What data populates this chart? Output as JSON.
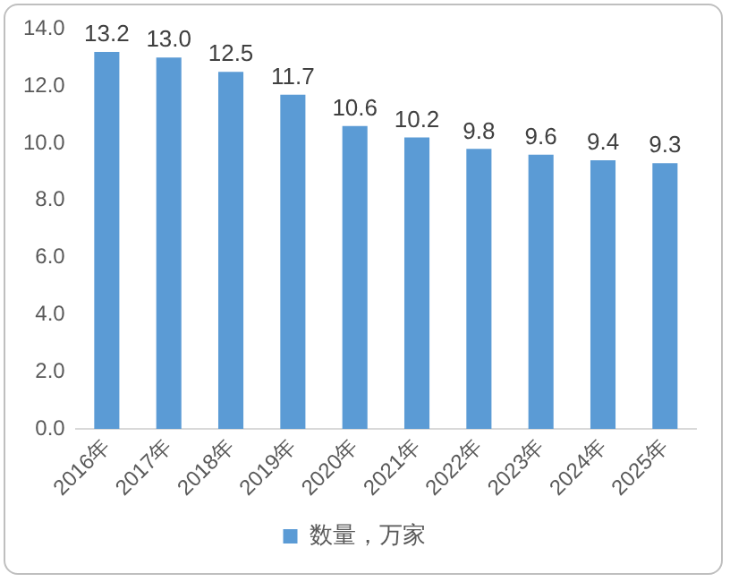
{
  "chart_data": {
    "type": "bar",
    "categories": [
      "2016年",
      "2017年",
      "2018年",
      "2019年",
      "2020年",
      "2021年",
      "2022年",
      "2023年",
      "2024年",
      "2025年"
    ],
    "series": [
      {
        "name": "数量，万家",
        "color": "#5b9bd5",
        "values": [
          13.2,
          13.0,
          12.5,
          11.7,
          10.6,
          10.2,
          9.8,
          9.6,
          9.4,
          9.3
        ],
        "value_labels": [
          "13.2",
          "13.0",
          "12.5",
          "11.7",
          "10.6",
          "10.2",
          "9.8",
          "9.6",
          "9.4",
          "9.3"
        ]
      }
    ],
    "ylim": [
      0,
      14
    ],
    "yticks": [
      {
        "value": 0,
        "label": "0.0"
      },
      {
        "value": 2,
        "label": "2.0"
      },
      {
        "value": 4,
        "label": "4.0"
      },
      {
        "value": 6,
        "label": "6.0"
      },
      {
        "value": 8,
        "label": "8.0"
      },
      {
        "value": 10,
        "label": "10.0"
      },
      {
        "value": 12,
        "label": "12.0"
      },
      {
        "value": 14,
        "label": "14.0"
      }
    ],
    "grid": false,
    "legend": "bottom"
  }
}
